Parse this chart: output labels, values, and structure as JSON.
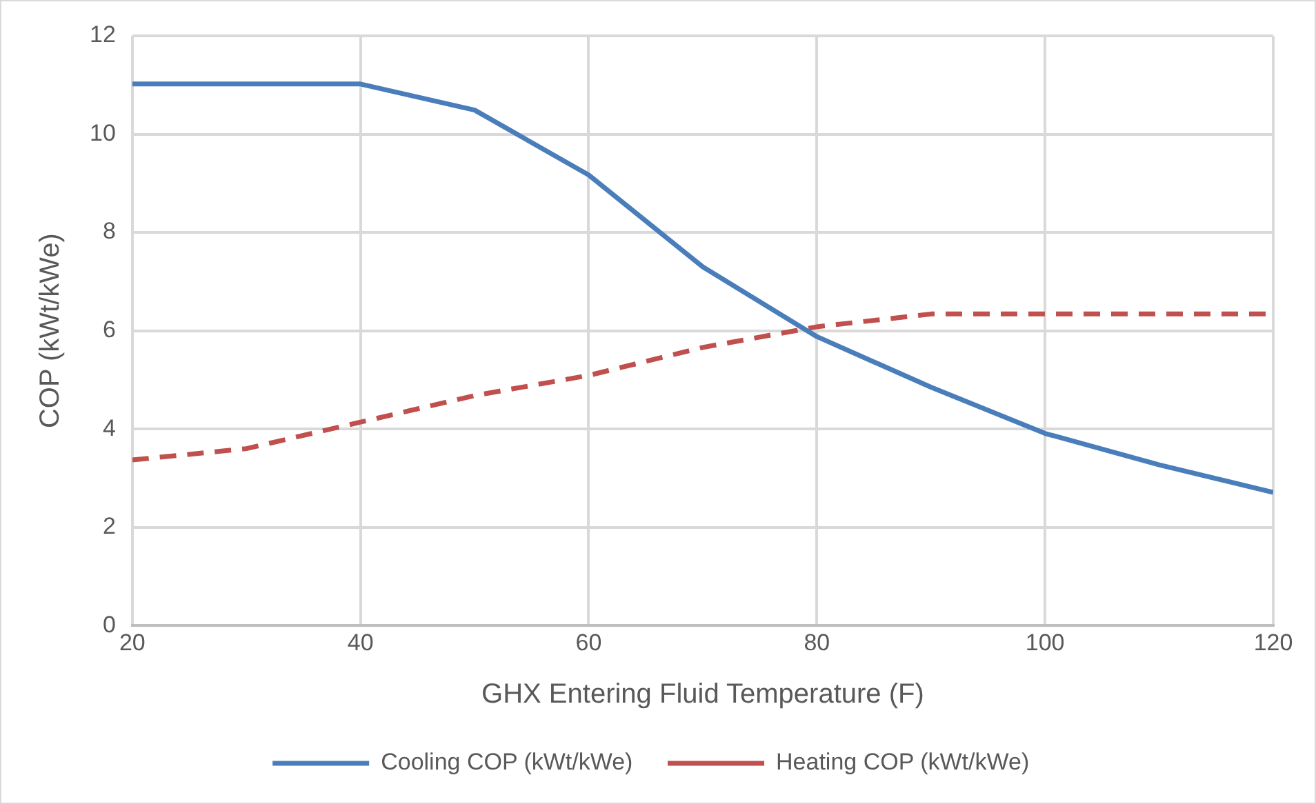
{
  "chart_data": {
    "type": "line",
    "xlabel": "GHX Entering Fluid Temperature (F)",
    "ylabel": "COP (kWt/kWe)",
    "x": [
      20,
      30,
      40,
      50,
      60,
      70,
      80,
      90,
      100,
      110,
      120
    ],
    "series": [
      {
        "name": "Cooling COP (kWt/kWe)",
        "color": "#4a7ebb",
        "line_style": "solid",
        "values": [
          11.02,
          11.02,
          11.02,
          10.49,
          9.17,
          7.3,
          5.88,
          4.85,
          3.91,
          3.27,
          2.71
        ]
      },
      {
        "name": "Heating COP (kWt/kWe)",
        "color": "#c0504d",
        "line_style": "dashed",
        "values": [
          3.37,
          3.6,
          4.14,
          4.68,
          5.09,
          5.66,
          6.08,
          6.34,
          6.34,
          6.34,
          6.34
        ]
      }
    ],
    "xlim": [
      20,
      120
    ],
    "xticks": [
      20,
      40,
      60,
      80,
      100,
      120
    ],
    "ylim": [
      0,
      12
    ],
    "yticks": [
      0,
      2,
      4,
      6,
      8,
      10,
      12
    ],
    "grid": true,
    "legend": "bottom",
    "marker": "none"
  }
}
